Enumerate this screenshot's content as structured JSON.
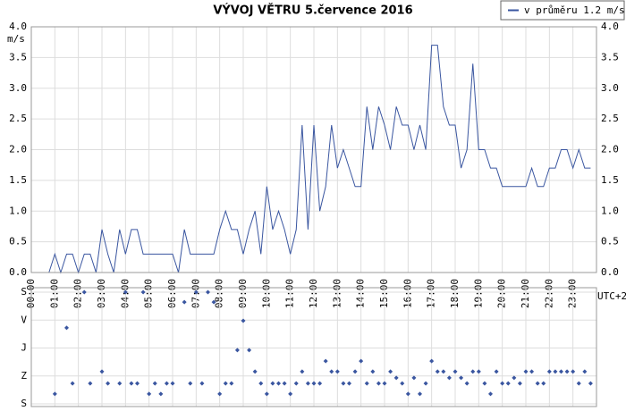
{
  "chart_data": [
    {
      "type": "line",
      "title": "VÝVOJ VĚTRU  5.července 2016",
      "y_label": "m/s",
      "x_label": "UTC+2",
      "x": [
        0.75,
        1,
        1.25,
        1.5,
        1.75,
        2,
        2.25,
        2.5,
        2.75,
        3,
        3.25,
        3.5,
        3.75,
        4,
        4.25,
        4.5,
        4.75,
        5,
        5.25,
        5.5,
        5.75,
        6,
        6.25,
        6.5,
        6.75,
        7,
        7.25,
        7.5,
        7.75,
        8,
        8.25,
        8.5,
        8.75,
        9,
        9.25,
        9.5,
        9.75,
        10,
        10.25,
        10.5,
        10.75,
        11,
        11.25,
        11.5,
        11.75,
        12,
        12.25,
        12.5,
        12.75,
        13,
        13.25,
        13.5,
        13.75,
        14,
        14.25,
        14.5,
        14.75,
        15,
        15.25,
        15.5,
        15.75,
        16,
        16.25,
        16.5,
        16.75,
        17,
        17.25,
        17.5,
        17.75,
        18,
        18.25,
        18.5,
        18.75,
        19,
        19.25,
        19.5,
        19.75,
        20,
        20.25,
        20.5,
        20.75,
        21,
        21.25,
        21.5,
        21.75,
        22,
        22.25,
        22.5,
        22.75,
        23,
        23.25,
        23.5,
        23.75
      ],
      "series": [
        {
          "name": "v průměru 1.2 m/s",
          "color": "#3a56a0",
          "values": [
            0,
            0.3,
            0,
            0.3,
            0.3,
            0,
            0.3,
            0.3,
            0,
            0.7,
            0.3,
            0,
            0.7,
            0.3,
            0.7,
            0.7,
            0.3,
            0.3,
            0.3,
            0.3,
            0.3,
            0.3,
            0,
            0.7,
            0.3,
            0.3,
            0.3,
            0.3,
            0.3,
            0.7,
            1.0,
            0.7,
            0.7,
            0.3,
            0.7,
            1.0,
            0.3,
            1.4,
            0.7,
            1.0,
            0.7,
            0.3,
            0.7,
            2.4,
            0.7,
            2.4,
            1.0,
            1.4,
            2.4,
            1.7,
            2.0,
            1.7,
            1.4,
            1.4,
            2.7,
            2.0,
            2.7,
            2.4,
            2.0,
            2.7,
            2.4,
            2.4,
            2.0,
            2.4,
            2.0,
            3.7,
            3.7,
            2.7,
            2.4,
            2.4,
            1.7,
            2.0,
            3.4,
            2.0,
            2.0,
            1.7,
            1.7,
            1.4,
            1.4,
            1.4,
            1.4,
            1.4,
            1.7,
            1.4,
            1.4,
            1.7,
            1.7,
            2.0,
            2.0,
            1.7,
            2.0,
            1.7,
            1.7
          ]
        }
      ],
      "xlim": [
        0,
        24
      ],
      "xticks": [
        {
          "value": 0,
          "label": "00:00"
        },
        {
          "value": 1,
          "label": "01:00"
        },
        {
          "value": 2,
          "label": "02:00"
        },
        {
          "value": 3,
          "label": "03:00"
        },
        {
          "value": 4,
          "label": "04:00"
        },
        {
          "value": 5,
          "label": "05:00"
        },
        {
          "value": 6,
          "label": "06:00"
        },
        {
          "value": 7,
          "label": "07:00"
        },
        {
          "value": 8,
          "label": "08:00"
        },
        {
          "value": 9,
          "label": "09:00"
        },
        {
          "value": 10,
          "label": "10:00"
        },
        {
          "value": 11,
          "label": "11:00"
        },
        {
          "value": 12,
          "label": "12:00"
        },
        {
          "value": 13,
          "label": "13:00"
        },
        {
          "value": 14,
          "label": "14:00"
        },
        {
          "value": 15,
          "label": "15:00"
        },
        {
          "value": 16,
          "label": "16:00"
        },
        {
          "value": 17,
          "label": "17:00"
        },
        {
          "value": 18,
          "label": "18:00"
        },
        {
          "value": 19,
          "label": "19:00"
        },
        {
          "value": 20,
          "label": "20:00"
        },
        {
          "value": 21,
          "label": "21:00"
        },
        {
          "value": 22,
          "label": "22:00"
        },
        {
          "value": 23,
          "label": "23:00"
        }
      ],
      "ylim": [
        0,
        4
      ],
      "yticks": [
        {
          "value": 0,
          "label": "0.0"
        },
        {
          "value": 0.5,
          "label": "0.5"
        },
        {
          "value": 1,
          "label": "1.0"
        },
        {
          "value": 1.5,
          "label": "1.5"
        },
        {
          "value": 2,
          "label": "2.0"
        },
        {
          "value": 2.5,
          "label": "2.5"
        },
        {
          "value": 3,
          "label": "3.0"
        },
        {
          "value": 3.5,
          "label": "3.5"
        },
        {
          "value": 4,
          "label": "4.0"
        }
      ],
      "grid": true,
      "legend": "top-right"
    },
    {
      "type": "scatter",
      "color": "#3a56a0",
      "x": [
        1,
        1.5,
        1.75,
        2.25,
        2.5,
        3,
        3.25,
        3.75,
        4,
        4.25,
        4.5,
        4.75,
        5,
        5.25,
        5.5,
        5.75,
        6,
        6.5,
        6.75,
        7,
        7.25,
        7.5,
        7.75,
        8,
        8.25,
        8.5,
        8.75,
        9,
        9.25,
        9.5,
        9.75,
        10,
        10.25,
        10.5,
        10.75,
        11,
        11.25,
        11.5,
        11.75,
        12,
        12.25,
        12.5,
        12.75,
        13,
        13.25,
        13.5,
        13.75,
        14,
        14.25,
        14.5,
        14.75,
        15,
        15.25,
        15.5,
        15.75,
        16,
        16.25,
        16.5,
        16.75,
        17,
        17.25,
        17.5,
        17.75,
        18,
        18.25,
        18.5,
        18.75,
        19,
        19.25,
        19.5,
        19.75,
        20,
        20.25,
        20.5,
        20.75,
        21,
        21.25,
        21.5,
        21.75,
        22,
        22.25,
        22.5,
        22.75,
        23,
        23.25,
        23.5,
        23.75
      ],
      "values": [
        328,
        115,
        294,
        0,
        294,
        256,
        294,
        294,
        0,
        294,
        294,
        0,
        328,
        294,
        328,
        294,
        294,
        32,
        294,
        0,
        294,
        0,
        32,
        328,
        294,
        294,
        187,
        92,
        187,
        256,
        294,
        328,
        294,
        294,
        294,
        328,
        294,
        256,
        294,
        294,
        294,
        222,
        256,
        256,
        294,
        294,
        256,
        222,
        294,
        256,
        294,
        294,
        256,
        276,
        294,
        328,
        276,
        328,
        294,
        222,
        256,
        256,
        276,
        256,
        276,
        294,
        256,
        256,
        294,
        328,
        256,
        294,
        294,
        276,
        294,
        256,
        256,
        294,
        294,
        256,
        256,
        256,
        256,
        256,
        294,
        256,
        294
      ],
      "xlim": [
        0,
        24
      ],
      "ylim": [
        0,
        360
      ],
      "yticks": [
        {
          "value": 0,
          "label": "S"
        },
        {
          "value": 90,
          "label": "V"
        },
        {
          "value": 180,
          "label": "J"
        },
        {
          "value": 270,
          "label": "Z"
        },
        {
          "value": 360,
          "label": "S"
        }
      ],
      "grid": true
    }
  ]
}
